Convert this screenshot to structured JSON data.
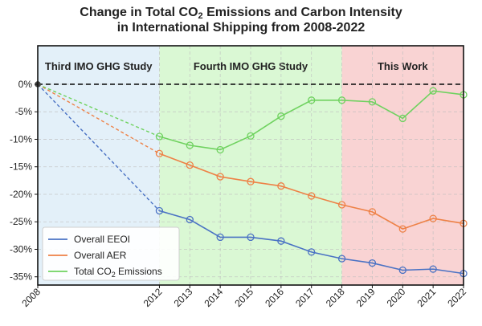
{
  "chart_data": {
    "type": "line",
    "title_line1_pre": "Change in Total CO",
    "title_line1_sub": "2",
    "title_line1_post": " Emissions and Carbon Intensity",
    "title_line2": "in International Shipping from 2008-2022",
    "x": [
      2008,
      2012,
      2013,
      2014,
      2015,
      2016,
      2017,
      2018,
      2019,
      2020,
      2021,
      2022
    ],
    "x_tick_labels": [
      "2008",
      "2012",
      "2013",
      "2014",
      "2015",
      "2016",
      "2017",
      "2018",
      "2019",
      "2020",
      "2021",
      "2022"
    ],
    "y_tick_values": [
      0,
      -5,
      -10,
      -15,
      -20,
      -25,
      -30,
      -35
    ],
    "y_tick_labels": [
      "0%",
      "-5%",
      "-10%",
      "-15%",
      "-20%",
      "-25%",
      "-30%",
      "-35%"
    ],
    "ylim": [
      -36.5,
      7
    ],
    "grid": true,
    "legend_position": "lower-left",
    "regions": [
      {
        "label": "Third IMO GHG Study",
        "from": 2008,
        "to": 2012,
        "color": "#e3f0f9"
      },
      {
        "label": "Fourth IMO GHG Study",
        "from": 2012,
        "to": 2018,
        "color": "#daf8d4"
      },
      {
        "label": "This Work",
        "from": 2018,
        "to": 2022,
        "color": "#f9d3d3"
      }
    ],
    "baseline": 0,
    "series": [
      {
        "name": "Overall EEOI",
        "color": "#4a72c4",
        "values": [
          0,
          -23.0,
          -24.6,
          -27.8,
          -27.8,
          -28.5,
          -30.5,
          -31.7,
          -32.5,
          -33.8,
          -33.6,
          -34.4
        ]
      },
      {
        "name": "Overall AER",
        "color": "#ee8146",
        "values": [
          0,
          -12.6,
          -14.7,
          -16.8,
          -17.7,
          -18.5,
          -20.3,
          -21.9,
          -23.2,
          -26.3,
          -24.4,
          -25.3
        ]
      },
      {
        "name": "Total CO",
        "name_sub": "2",
        "name_post": " Emissions",
        "color": "#6fd25f",
        "values": [
          0,
          -9.5,
          -11.1,
          -11.9,
          -9.4,
          -5.8,
          -2.9,
          -2.9,
          -3.2,
          -6.2,
          -1.2,
          -1.9
        ]
      }
    ]
  }
}
